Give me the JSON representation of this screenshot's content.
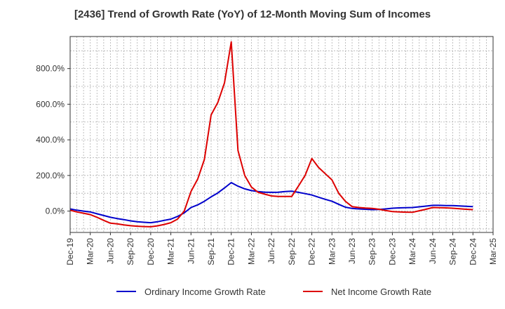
{
  "chart_data": {
    "type": "line",
    "title": "[2436]  Trend of Growth Rate (YoY) of 12-Month Moving Sum of Incomes",
    "xlabel": "",
    "ylabel": "",
    "x_tick_labels": [
      "Dec-19",
      "Mar-20",
      "Jun-20",
      "Sep-20",
      "Dec-20",
      "Mar-21",
      "Jun-21",
      "Sep-21",
      "Dec-21",
      "Mar-22",
      "Jun-22",
      "Sep-22",
      "Dec-22",
      "Mar-23",
      "Jun-23",
      "Sep-23",
      "Dec-23",
      "Mar-24",
      "Jun-24",
      "Sep-24",
      "Dec-24",
      "Mar-25"
    ],
    "y_tick_labels": [
      "0.0%",
      "200.0%",
      "400.0%",
      "600.0%",
      "800.0%"
    ],
    "y_ticks": [
      0,
      200,
      400,
      600,
      800
    ],
    "ylim": [
      -120,
      980
    ],
    "x": [
      "Dec-19",
      "Jan-20",
      "Feb-20",
      "Mar-20",
      "Apr-20",
      "May-20",
      "Jun-20",
      "Jul-20",
      "Aug-20",
      "Sep-20",
      "Oct-20",
      "Nov-20",
      "Dec-20",
      "Jan-21",
      "Feb-21",
      "Mar-21",
      "Apr-21",
      "May-21",
      "Jun-21",
      "Jul-21",
      "Aug-21",
      "Sep-21",
      "Oct-21",
      "Nov-21",
      "Dec-21",
      "Jan-22",
      "Feb-22",
      "Mar-22",
      "Apr-22",
      "May-22",
      "Jun-22",
      "Jul-22",
      "Aug-22",
      "Sep-22",
      "Oct-22",
      "Nov-22",
      "Dec-22",
      "Jan-23",
      "Feb-23",
      "Mar-23",
      "Apr-23",
      "May-23",
      "Jun-23",
      "Jul-23",
      "Aug-23",
      "Sep-23",
      "Oct-23",
      "Nov-23",
      "Dec-23",
      "Jan-24",
      "Feb-24",
      "Mar-24",
      "Apr-24",
      "May-24",
      "Jun-24",
      "Jul-24",
      "Aug-24",
      "Sep-24",
      "Oct-24",
      "Nov-24",
      "Dec-24"
    ],
    "series": [
      {
        "name": "Ordinary Income Growth Rate",
        "color": "#0000cc",
        "values": [
          12,
          5,
          0,
          -5,
          -15,
          -25,
          -35,
          -42,
          -48,
          -55,
          -60,
          -63,
          -65,
          -60,
          -52,
          -45,
          -30,
          -10,
          20,
          35,
          55,
          80,
          102,
          130,
          160,
          140,
          125,
          115,
          110,
          106,
          105,
          106,
          110,
          112,
          105,
          98,
          90,
          78,
          66,
          55,
          38,
          22,
          15,
          12,
          10,
          8,
          9,
          12,
          16,
          18,
          19,
          20,
          24,
          28,
          32,
          32,
          31,
          31,
          29,
          27,
          25
        ]
      },
      {
        "name": "Net Income Growth Rate",
        "color": "#dd0000",
        "values": [
          5,
          -5,
          -12,
          -20,
          -35,
          -52,
          -68,
          -72,
          -78,
          -82,
          -85,
          -87,
          -88,
          -83,
          -75,
          -65,
          -45,
          0,
          110,
          180,
          290,
          540,
          610,
          720,
          950,
          340,
          200,
          135,
          105,
          95,
          85,
          82,
          82,
          82,
          140,
          200,
          295,
          245,
          210,
          175,
          100,
          55,
          25,
          20,
          17,
          15,
          10,
          3,
          -3,
          -5,
          -6,
          -7,
          2,
          10,
          20,
          19,
          18,
          16,
          13,
          10,
          8
        ]
      }
    ],
    "grid": true,
    "legend_position": "bottom"
  }
}
